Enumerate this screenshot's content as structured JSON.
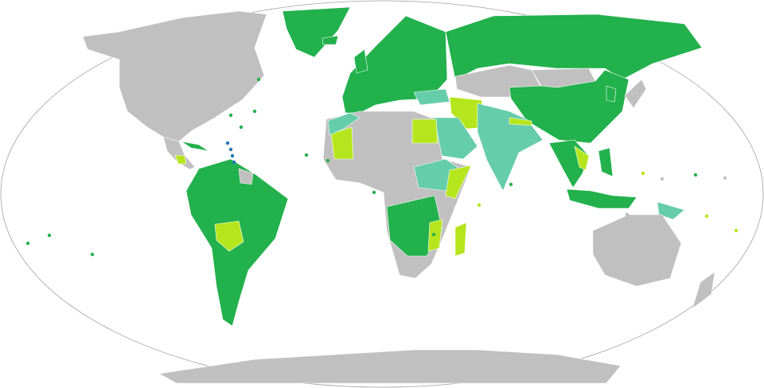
{
  "map": {
    "colors": {
      "category_a": "#22b14c",
      "category_b": "#b5e61d",
      "category_c": "#66cdaa",
      "category_d": "#1f77b4",
      "no_data": "#c0c0c0",
      "ocean": "#ffffff",
      "frame": "#a0a0a0"
    },
    "regions": [
      {
        "id": "north-america",
        "fill": "no_data"
      },
      {
        "id": "greenland",
        "fill": "category_a"
      },
      {
        "id": "central-america",
        "fill": "no_data"
      },
      {
        "id": "guatemala",
        "fill": "category_b"
      },
      {
        "id": "cuba",
        "fill": "category_a"
      },
      {
        "id": "south-america",
        "fill": "category_a"
      },
      {
        "id": "bolivia",
        "fill": "category_b"
      },
      {
        "id": "guianas",
        "fill": "no_data"
      },
      {
        "id": "europe",
        "fill": "category_a"
      },
      {
        "id": "russia",
        "fill": "category_a"
      },
      {
        "id": "central-asia",
        "fill": "no_data"
      },
      {
        "id": "mongolia",
        "fill": "no_data"
      },
      {
        "id": "china",
        "fill": "category_a"
      },
      {
        "id": "turkey",
        "fill": "category_c"
      },
      {
        "id": "iran",
        "fill": "category_b"
      },
      {
        "id": "arabia",
        "fill": "category_c"
      },
      {
        "id": "pakistan-india",
        "fill": "category_c"
      },
      {
        "id": "nepal",
        "fill": "category_b"
      },
      {
        "id": "africa",
        "fill": "no_data"
      },
      {
        "id": "egypt",
        "fill": "category_b"
      },
      {
        "id": "mauritania-mali",
        "fill": "category_b"
      },
      {
        "id": "western-sahara-morocco",
        "fill": "category_c"
      },
      {
        "id": "horn-of-africa",
        "fill": "category_c"
      },
      {
        "id": "somalia",
        "fill": "category_b"
      },
      {
        "id": "central-east-africa",
        "fill": "category_a"
      },
      {
        "id": "mozambique",
        "fill": "category_b"
      },
      {
        "id": "madagascar",
        "fill": "category_b"
      },
      {
        "id": "southeast-asia",
        "fill": "category_a"
      },
      {
        "id": "vietnam",
        "fill": "category_b"
      },
      {
        "id": "korea",
        "fill": "category_a"
      },
      {
        "id": "japan",
        "fill": "no_data"
      },
      {
        "id": "philippines",
        "fill": "category_a"
      },
      {
        "id": "indonesia",
        "fill": "category_a"
      },
      {
        "id": "papua-new-guinea",
        "fill": "category_c"
      },
      {
        "id": "australia",
        "fill": "no_data"
      },
      {
        "id": "new-zealand",
        "fill": "no_data"
      },
      {
        "id": "antarctica",
        "fill": "no_data"
      },
      {
        "id": "uk-ireland",
        "fill": "category_a"
      },
      {
        "id": "iceland",
        "fill": "category_a"
      }
    ],
    "islands": [
      {
        "fill": "category_a"
      },
      {
        "fill": "category_a"
      },
      {
        "fill": "category_a"
      },
      {
        "fill": "category_a"
      },
      {
        "fill": "category_a"
      },
      {
        "fill": "category_a"
      },
      {
        "fill": "category_a"
      },
      {
        "fill": "category_a"
      },
      {
        "fill": "category_d"
      },
      {
        "fill": "category_d"
      },
      {
        "fill": "category_d"
      },
      {
        "fill": "category_d"
      },
      {
        "fill": "category_b"
      },
      {
        "fill": "category_b"
      },
      {
        "fill": "category_b"
      },
      {
        "fill": "no_data"
      },
      {
        "fill": "no_data"
      },
      {
        "fill": "category_a"
      },
      {
        "fill": "category_a"
      },
      {
        "fill": "category_a"
      },
      {
        "fill": "category_a"
      },
      {
        "fill": "no_data"
      },
      {
        "fill": "category_b"
      },
      {
        "fill": "category_a"
      }
    ]
  }
}
